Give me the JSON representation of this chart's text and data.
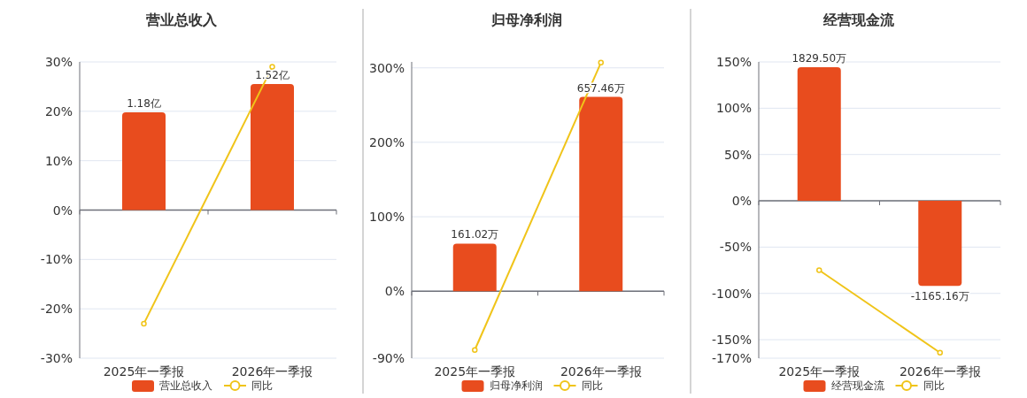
{
  "chart_data": [
    {
      "type": "bar",
      "title": "营业总收入",
      "categories": [
        "2025年一季报",
        "2026年一季报"
      ],
      "grid": "y",
      "legend": "bottom",
      "ylim": [
        -30,
        30
      ],
      "yticks": [
        {
          "value": -30,
          "label": "-30%"
        },
        {
          "value": -20,
          "label": "-20%"
        },
        {
          "value": -10,
          "label": "-10%"
        },
        {
          "value": 0,
          "label": "0%"
        },
        {
          "value": 10,
          "label": "10%"
        },
        {
          "value": 20,
          "label": "20%"
        },
        {
          "value": 30,
          "label": "30%"
        }
      ],
      "y2lim": [
        -1.788,
        1.788
      ],
      "series": [
        {
          "name": "营业总收入",
          "axis": "y2",
          "color": "#e84c1e",
          "values": [
            1.18,
            1.52
          ],
          "value_labels": [
            "1.18亿",
            "1.52亿"
          ]
        },
        {
          "name": "同比",
          "type": "line",
          "marker": "circle",
          "color": "#f0c419",
          "values": [
            -23,
            29
          ]
        }
      ]
    },
    {
      "type": "bar",
      "title": "归母净利润",
      "categories": [
        "2025年一季报",
        "2026年一季报"
      ],
      "grid": "y",
      "legend": "bottom",
      "ylim": [
        -90,
        308
      ],
      "yticks": [
        {
          "value": -90,
          "label": "-90%"
        },
        {
          "value": 0,
          "label": "0%"
        },
        {
          "value": 100,
          "label": "100%"
        },
        {
          "value": 200,
          "label": "200%"
        },
        {
          "value": 300,
          "label": "300%"
        }
      ],
      "y2lim": [
        -226.8,
        776
      ],
      "series": [
        {
          "name": "归母净利润",
          "axis": "y2",
          "color": "#e84c1e",
          "values": [
            161.02,
            657.46
          ],
          "value_labels": [
            "161.02万",
            "657.46万"
          ]
        },
        {
          "name": "同比",
          "type": "line",
          "marker": "circle",
          "color": "#f0c419",
          "values": [
            -79,
            307
          ]
        }
      ]
    },
    {
      "type": "bar",
      "title": "经营现金流",
      "categories": [
        "2025年一季报",
        "2026年一季报"
      ],
      "grid": "y",
      "legend": "bottom",
      "ylim": [
        -170,
        150
      ],
      "yticks": [
        {
          "value": -170,
          "label": "-170%"
        },
        {
          "value": -150,
          "label": "-150%"
        },
        {
          "value": -100,
          "label": "-100%"
        },
        {
          "value": -50,
          "label": "-50%"
        },
        {
          "value": 0,
          "label": "0%"
        },
        {
          "value": 50,
          "label": "50%"
        },
        {
          "value": 100,
          "label": "100%"
        },
        {
          "value": 150,
          "label": "150%"
        }
      ],
      "y2lim": [
        -2156,
        1902
      ],
      "series": [
        {
          "name": "经营现金流",
          "axis": "y2",
          "color": "#e84c1e",
          "values": [
            1829.5,
            -1165.16
          ],
          "value_labels": [
            "1829.50万",
            "-1165.16万"
          ]
        },
        {
          "name": "同比",
          "type": "line",
          "marker": "circle",
          "color": "#f0c419",
          "values": [
            -75,
            -164
          ]
        }
      ]
    }
  ]
}
